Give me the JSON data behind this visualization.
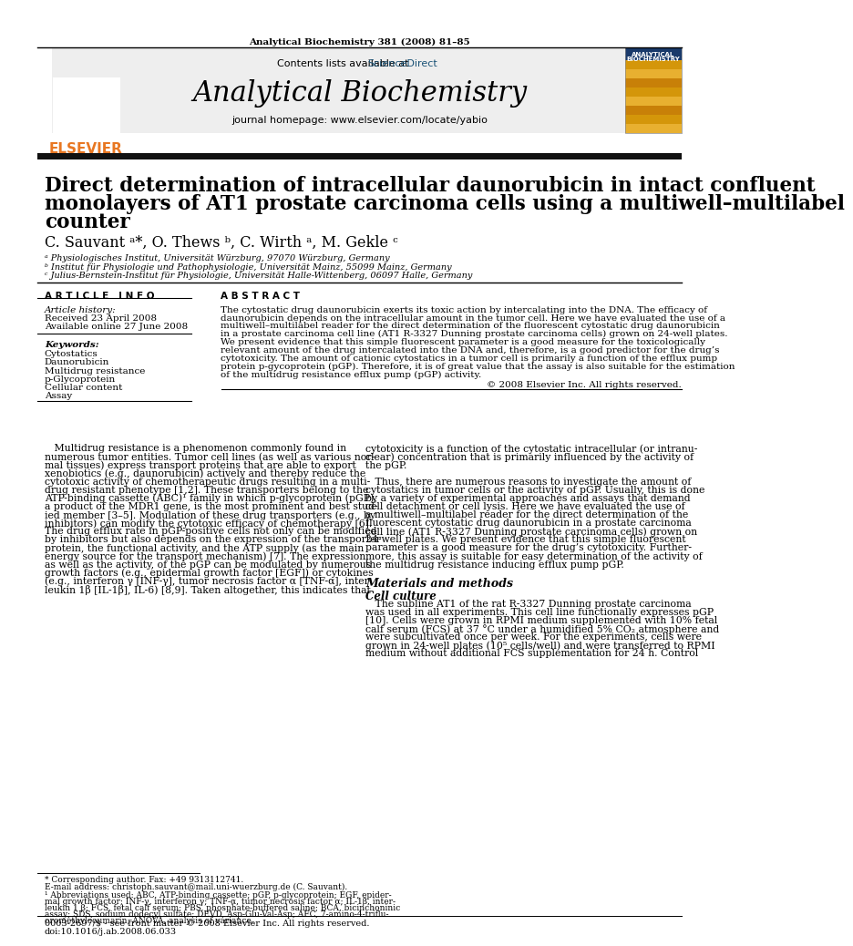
{
  "journal_info": "Analytical Biochemistry 381 (2008) 81–85",
  "contents_line": "Contents lists available at ",
  "science_direct_text": "ScienceDirect",
  "science_direct_color": "#1a5276",
  "journal_name": "Analytical Biochemistry",
  "journal_homepage": "journal homepage: www.elsevier.com/locate/yabio",
  "title_line1": "Direct determination of intracellular daunorubicin in intact confluent",
  "title_line2": "monolayers of AT1 prostate carcinoma cells using a multiwell–multilabel",
  "title_line3": "counter",
  "authors": "C. Sauvant ᵃ*, O. Thews ᵇ, C. Wirth ᵃ, M. Gekle ᶜ",
  "affil_a": "ᵃ Physiologisches Institut, Universität Würzburg, 97070 Würzburg, Germany",
  "affil_b": "ᵇ Institut für Physiologie und Pathophysiologie, Universität Mainz, 55099 Mainz, Germany",
  "affil_c": "ᶜ Julius-Bernstein-Institut für Physiologie, Universität Halle-Wittenberg, 06097 Halle, Germany",
  "article_info_header": "A R T I C L E   I N F O",
  "abstract_header": "A B S T R A C T",
  "article_history_label": "Article history:",
  "received": "Received 23 April 2008",
  "available": "Available online 27 June 2008",
  "keywords_label": "Keywords:",
  "keywords": [
    "Cytostatics",
    "Daunorubicin",
    "Multidrug resistance",
    "p-Glycoprotein",
    "Cellular content",
    "Assay"
  ],
  "copyright": "© 2008 Elsevier Inc. All rights reserved.",
  "section_header1": "Materials and methods",
  "section_header2": "Cell culture",
  "footnote_star": "* Corresponding author. Fax: +49 9313112741.",
  "footnote_email": "E-mail address: christoph.sauvant@mail.uni-wuerzburg.de (C. Sauvant).",
  "bottom_line1": "0003-2697/$ - see front matter © 2008 Elsevier Inc. All rights reserved.",
  "bottom_line2": "doi:10.1016/j.ab.2008.06.033",
  "header_bg": "#eeeeee",
  "black_bar_color": "#111111",
  "elsevier_orange": "#e87722",
  "text_color": "#000000",
  "blue_link": "#1a5276",
  "abstract_lines": [
    "The cytostatic drug daunorubicin exerts its toxic action by intercalating into the DNA. The efficacy of",
    "daunorubicin depends on the intracellular amount in the tumor cell. Here we have evaluated the use of a",
    "multiwell–multilabel reader for the direct determination of the fluorescent cytostatic drug daunorubicin",
    "in a prostate carcinoma cell line (AT1 R-3327 Dunning prostate carcinoma cells) grown on 24-well plates.",
    "We present evidence that this simple fluorescent parameter is a good measure for the toxicologically",
    "relevant amount of the drug intercalated into the DNA and, therefore, is a good predictor for the drug’s",
    "cytotoxicity. The amount of cationic cytostatics in a tumor cell is primarily a function of the efflux pump",
    "protein p-gycoprotein (pGP). Therefore, it is of great value that the assay is also suitable for the estimation",
    "of the multidrug resistance efflux pump (pGP) activity."
  ],
  "col1_lines": [
    "   Multidrug resistance is a phenomenon commonly found in",
    "numerous tumor entities. Tumor cell lines (as well as various nor-",
    "mal tissues) express transport proteins that are able to export",
    "xenobiotics (e.g., daunorubicin) actively and thereby reduce the",
    "cytotoxic activity of chemotherapeutic drugs resulting in a multi-",
    "drug resistant phenotype [1,2]. These transporters belong to the",
    "ATP-binding cassette (ABC)¹ family in which p-glycoprotein (pGP),",
    "a product of the MDR1 gene, is the most prominent and best stud-",
    "ied member [3–5]. Modulation of these drug transporters (e.g., by",
    "inhibitors) can modify the cytotoxic efficacy of chemotherapy [6].",
    "The drug efflux rate in pGP-positive cells not only can be modified",
    "by inhibitors but also depends on the expression of the transporter",
    "protein, the functional activity, and the ATP supply (as the main",
    "energy source for the transport mechanism) [7]. The expression,",
    "as well as the activity, of the pGP can be modulated by numerous",
    "growth factors (e.g., epidermal growth factor [EGF]) or cytokines",
    "(e.g., interferon γ [INF-γ], tumor necrosis factor α [TNF-α], inter-",
    "leukin 1β [IL-1β], IL-6) [8,9]. Taken altogether, this indicates that"
  ],
  "col2_lines": [
    "cytotoxicity is a function of the cytostatic intracellular (or intranu-",
    "clear) concentration that is primarily influenced by the activity of",
    "the pGP.",
    "",
    "   Thus, there are numerous reasons to investigate the amount of",
    "cytostatics in tumor cells or the activity of pGP. Usually, this is done",
    "by a variety of experimental approaches and assays that demand",
    "cell detachment or cell lysis. Here we have evaluated the use of",
    "a multiwell–multilabel reader for the direct determination of the",
    "fluorescent cytostatic drug daunorubicin in a prostate carcinoma",
    "cell line (AT1 R-3327 Dunning prostate carcinoma cells) grown on",
    "24-well plates. We present evidence that this simple fluorescent",
    "parameter is a good measure for the drug’s cytotoxicity. Further-",
    "more, this assay is suitable for easy determination of the activity of",
    "the multidrug resistance inducing efflux pump pGP."
  ],
  "cell_culture_lines": [
    "   The subline AT1 of the rat R-3327 Dunning prostate carcinoma",
    "was used in all experiments. This cell line functionally expresses pGP",
    "[10]. Cells were grown in RPMI medium supplemented with 10% fetal",
    "calf serum (FCS) at 37 °C under a humidified 5% CO₂ atmosphere and",
    "were subcultivated once per week. For the experiments, cells were",
    "grown in 24-well plates (10⁵ cells/well) and were transferred to RPMI",
    "medium without additional FCS supplementation for 24 h. Control"
  ],
  "fn1_lines": [
    "¹ Abbreviations used: ABC, ATP-binding cassette; pGP, p-glycoprotein; EGF, epider-",
    "mal growth factor; INF-γ, interferon γ; TNF-α, tumor necrosis factor α; IL-1β, inter-",
    "leukin 1 β; FCS, fetal calf serum; PBS, phosphate-buffered saline; BCA, bicinchoninic",
    "assay; SDS, sodium dodecyl sulfate; DEVD, Asp-Glu-Val-Asp; AFC, 7-amino-4-triflu-",
    "oromethylcoumarin; ANOVA, analysis of variance."
  ]
}
